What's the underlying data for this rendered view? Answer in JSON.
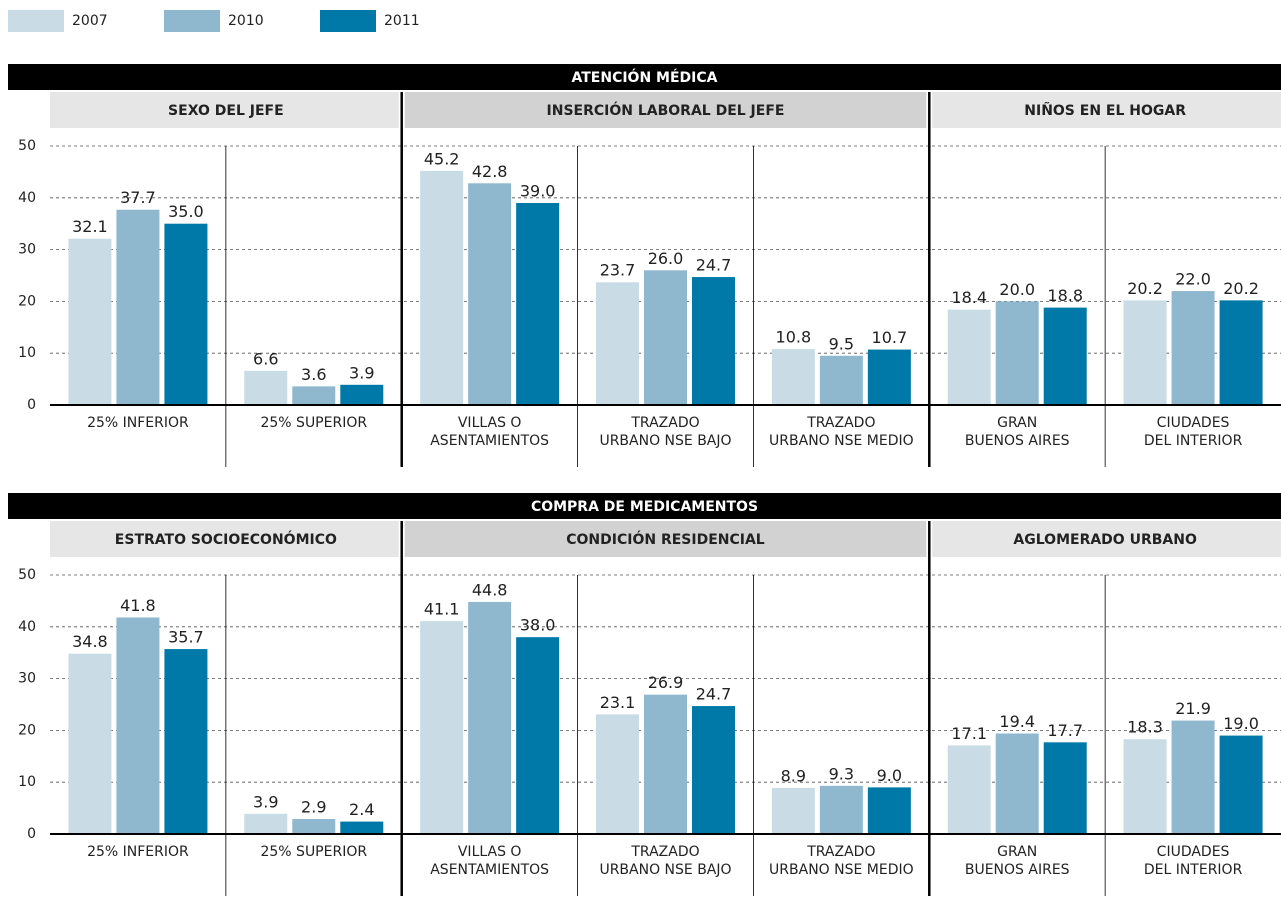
{
  "legend": [
    {
      "name": "2007",
      "color": "#c9dce5"
    },
    {
      "name": "2010",
      "color": "#8fb8cf"
    },
    {
      "name": "2011",
      "color": "#0079a8"
    }
  ],
  "chart_data": [
    {
      "type": "bar",
      "title": "ATENCIÓN MÉDICA",
      "ylim": [
        0,
        50
      ],
      "yticks": [
        0,
        10,
        20,
        30,
        40,
        50
      ],
      "grid": true,
      "panels": [
        {
          "title": "SEXO DEL JEFE",
          "categories": [
            [
              "25% INFERIOR"
            ],
            [
              "25% SUPERIOR"
            ]
          ]
        },
        {
          "title": "INSERCIÓN LABORAL DEL JEFE",
          "categories": [
            [
              "VILLAS O",
              "ASENTAMIENTOS"
            ],
            [
              "TRAZADO",
              "URBANO NSE BAJO"
            ],
            [
              "TRAZADO",
              "URBANO NSE MEDIO"
            ]
          ]
        },
        {
          "title": "NIÑOS EN EL HOGAR",
          "categories": [
            [
              "GRAN",
              "BUENOS AIRES"
            ],
            [
              "CIUDADES",
              "DEL INTERIOR"
            ]
          ]
        }
      ],
      "series": [
        {
          "values": [
            32.1,
            6.6,
            45.2,
            23.7,
            10.8,
            18.4,
            20.2
          ],
          "value_labels": [
            "32.1",
            "6.6",
            "45.2",
            "23.7",
            "10.8",
            "18.4",
            "20.2"
          ]
        },
        {
          "values": [
            37.7,
            3.6,
            42.8,
            26.0,
            9.5,
            20.0,
            22.0
          ],
          "value_labels": [
            "37.7",
            "3.6",
            "42.8",
            "26.0",
            "9.5",
            "20.0",
            "22.0"
          ]
        },
        {
          "values": [
            35.0,
            3.9,
            39.0,
            24.7,
            10.7,
            18.8,
            20.2
          ],
          "value_labels": [
            "35.0",
            "3.9",
            "39.0",
            "24.7",
            "10.7",
            "18.8",
            "20.2"
          ]
        }
      ]
    },
    {
      "type": "bar",
      "title": "COMPRA DE MEDICAMENTOS",
      "ylim": [
        0,
        50
      ],
      "yticks": [
        0,
        10,
        20,
        30,
        40,
        50
      ],
      "grid": true,
      "panels": [
        {
          "title": "ESTRATO SOCIOECONÓMICO",
          "categories": [
            [
              "25% INFERIOR"
            ],
            [
              "25% SUPERIOR"
            ]
          ]
        },
        {
          "title": "CONDICIÓN RESIDENCIAL",
          "categories": [
            [
              "VILLAS O",
              "ASENTAMIENTOS"
            ],
            [
              "TRAZADO",
              "URBANO NSE BAJO"
            ],
            [
              "TRAZADO",
              "URBANO NSE MEDIO"
            ]
          ]
        },
        {
          "title": "AGLOMERADO URBANO",
          "categories": [
            [
              "GRAN",
              "BUENOS AIRES"
            ],
            [
              "CIUDADES",
              "DEL INTERIOR"
            ]
          ]
        }
      ],
      "series": [
        {
          "values": [
            34.8,
            3.9,
            41.1,
            23.1,
            8.9,
            17.1,
            18.3
          ],
          "value_labels": [
            "34.8",
            "3.9",
            "41.1",
            "23.1",
            "8.9",
            "17.1",
            "18.3"
          ]
        },
        {
          "values": [
            41.8,
            2.9,
            44.8,
            26.9,
            9.3,
            19.4,
            21.9
          ],
          "value_labels": [
            "41.8",
            "2.9",
            "44.8",
            "26.9",
            "9.3",
            "19.4",
            "21.9"
          ]
        },
        {
          "values": [
            35.7,
            2.4,
            38.0,
            24.7,
            9.0,
            17.7,
            19.0
          ],
          "value_labels": [
            "35.7",
            "2.4",
            "38.0",
            "24.7",
            "9.0",
            "17.7",
            "19.0"
          ]
        }
      ]
    }
  ]
}
